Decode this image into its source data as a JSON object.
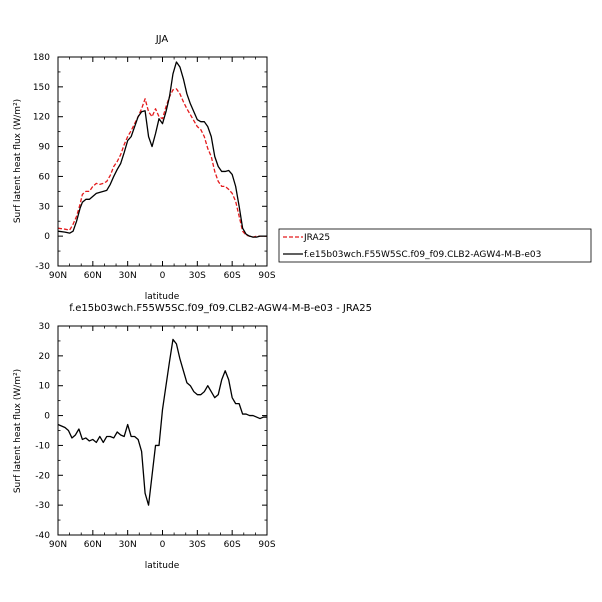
{
  "chart_data": [
    {
      "type": "line",
      "title": "JJA",
      "xlabel": "latitude",
      "ylabel": "Surf latent heat flux (W/m²)",
      "xlim": [
        90,
        -90
      ],
      "ylim": [
        -30,
        180
      ],
      "xticks": [
        90,
        60,
        30,
        0,
        -30,
        -60,
        -90
      ],
      "xtick_labels": [
        "90N",
        "60N",
        "30N",
        "0",
        "30S",
        "60S",
        "90S"
      ],
      "yticks": [
        -30,
        0,
        30,
        60,
        90,
        120,
        150,
        180
      ],
      "ytick_labels": [
        "-30",
        "0",
        "30",
        "60",
        "90",
        "120",
        "150",
        "180"
      ],
      "grid": false,
      "legend_position": "right",
      "series": [
        {
          "name": "JRA25",
          "color": "#e41a1c",
          "dash": "dashed",
          "x": [
            90,
            84,
            80,
            77,
            74,
            71,
            69,
            66,
            63,
            60,
            57,
            54,
            51,
            48,
            45,
            42,
            39,
            36,
            33,
            30,
            27,
            24,
            21,
            18,
            15,
            12,
            9,
            6,
            3,
            0,
            -3,
            -6,
            -9,
            -12,
            -15,
            -18,
            -21,
            -24,
            -27,
            -30,
            -33,
            -36,
            -39,
            -42,
            -45,
            -48,
            -51,
            -54,
            -57,
            -60,
            -63,
            -66,
            -69,
            -72,
            -75,
            -78,
            -81,
            -84,
            -87,
            -90
          ],
          "y": [
            8,
            7,
            6,
            12,
            20,
            32,
            42,
            45,
            45,
            50,
            53,
            52,
            53,
            55,
            61,
            70,
            75,
            82,
            92,
            100,
            106,
            113,
            120,
            128,
            138,
            125,
            120,
            128,
            120,
            118,
            130,
            140,
            147,
            148,
            143,
            135,
            128,
            122,
            116,
            110,
            107,
            100,
            88,
            80,
            65,
            55,
            50,
            50,
            47,
            43,
            35,
            20,
            5,
            1,
            0,
            -1,
            0,
            0,
            0,
            0
          ]
        },
        {
          "name": "f.e15b03wch.F55W5SC.f09_f09.CLB2-AGW4-M-B-e03",
          "color": "#000000",
          "dash": "solid",
          "x": [
            90,
            84,
            80,
            77,
            74,
            71,
            69,
            66,
            63,
            60,
            57,
            54,
            51,
            48,
            45,
            42,
            39,
            36,
            33,
            30,
            27,
            24,
            21,
            18,
            15,
            12,
            9,
            6,
            3,
            0,
            -3,
            -6,
            -9,
            -12,
            -15,
            -18,
            -21,
            -24,
            -27,
            -30,
            -33,
            -36,
            -39,
            -42,
            -45,
            -48,
            -51,
            -54,
            -57,
            -60,
            -63,
            -66,
            -69,
            -72,
            -75,
            -78,
            -81,
            -84,
            -87,
            -90
          ],
          "y": [
            5,
            4,
            3,
            5,
            15,
            28,
            34,
            37,
            37,
            40,
            43,
            44,
            45,
            46,
            52,
            60,
            67,
            73,
            84,
            96,
            100,
            110,
            120,
            125,
            126,
            100,
            90,
            103,
            118,
            113,
            125,
            140,
            163,
            175,
            170,
            158,
            143,
            133,
            125,
            117,
            115,
            115,
            110,
            100,
            80,
            70,
            65,
            65,
            66,
            62,
            50,
            30,
            8,
            2,
            0,
            -1,
            -1,
            0,
            0,
            0
          ]
        }
      ]
    },
    {
      "type": "line",
      "title": "f.e15b03wch.F55W5SC.f09_f09.CLB2-AGW4-M-B-e03 - JRA25",
      "xlabel": "latitude",
      "ylabel": "Surf latent heat flux (W/m²)",
      "xlim": [
        90,
        -90
      ],
      "ylim": [
        -40,
        30
      ],
      "xticks": [
        90,
        60,
        30,
        0,
        -30,
        -60,
        -90
      ],
      "xtick_labels": [
        "90N",
        "60N",
        "30N",
        "0",
        "30S",
        "60S",
        "90S"
      ],
      "yticks": [
        -40,
        -30,
        -20,
        -10,
        0,
        10,
        20,
        30
      ],
      "ytick_labels": [
        "-40",
        "-30",
        "-20",
        "-10",
        "0",
        "10",
        "20",
        "30"
      ],
      "grid": false,
      "series": [
        {
          "color": "#000000",
          "dash": "solid",
          "x": [
            90,
            87,
            84,
            81,
            78,
            75,
            72,
            69,
            66,
            63,
            60,
            57,
            54,
            51,
            48,
            45,
            42,
            39,
            36,
            33,
            30,
            27,
            24,
            21,
            18,
            15,
            12,
            9,
            6,
            3,
            0,
            -3,
            -6,
            -9,
            -12,
            -15,
            -18,
            -21,
            -24,
            -27,
            -30,
            -33,
            -36,
            -39,
            -42,
            -45,
            -48,
            -51,
            -54,
            -57,
            -60,
            -63,
            -66,
            -69,
            -72,
            -75,
            -78,
            -81,
            -84,
            -87,
            -90
          ],
          "y": [
            -3,
            -3.5,
            -4,
            -5,
            -7.5,
            -6.5,
            -4.5,
            -8,
            -7.5,
            -8.5,
            -8,
            -9,
            -7,
            -9,
            -7,
            -7,
            -7.5,
            -5.5,
            -6.5,
            -7,
            -3,
            -7,
            -7,
            -8,
            -12,
            -26,
            -30,
            -20,
            -10,
            -10,
            2,
            10,
            18,
            25.5,
            24,
            19,
            15,
            11,
            10,
            8,
            7,
            7,
            8,
            10,
            8,
            6,
            7,
            12,
            15,
            12,
            6,
            4,
            4,
            0.5,
            0.5,
            0,
            0,
            -0.5,
            -1,
            -0.5,
            -0.5
          ]
        }
      ]
    }
  ]
}
